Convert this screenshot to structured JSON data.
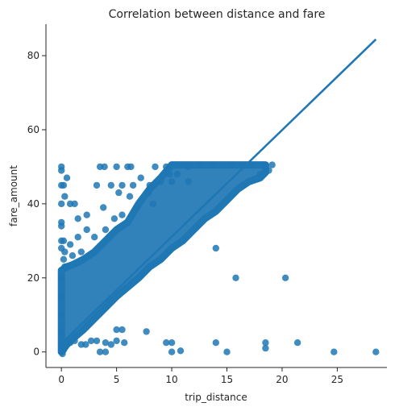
{
  "chart_data": {
    "type": "scatter",
    "title": "Correlation between distance and fare",
    "xlabel": "trip_distance",
    "ylabel": "fare_amount",
    "xlim": [
      -1.4,
      29.5
    ],
    "ylim": [
      -4.2,
      88.5
    ],
    "xticks": [
      0,
      5,
      10,
      15,
      20,
      25
    ],
    "yticks": [
      0,
      20,
      40,
      60,
      80
    ],
    "grid": false,
    "legend": "none",
    "point_color": "#1f77b4",
    "regression_line": {
      "x": [
        0.0,
        28.5
      ],
      "y": [
        2.3,
        84.4
      ],
      "color": "#1f77b4"
    },
    "dense_band": {
      "x": [
        0.0,
        0.5,
        1.0,
        2.0,
        3.0,
        4.0,
        5.0,
        6.0,
        7.0,
        8.0,
        9.0,
        10.0,
        11.0,
        12.0,
        13.0,
        14.0,
        15.0,
        16.0,
        17.0,
        18.0,
        18.5
      ],
      "upper": [
        22.0,
        23.0,
        23.5,
        25.0,
        27.0,
        30.0,
        33.0,
        35.0,
        40.0,
        44.0,
        47.0,
        50.5,
        50.5,
        50.5,
        50.5,
        50.5,
        50.5,
        50.5,
        50.5,
        50.5,
        50.5
      ],
      "lower": [
        0.0,
        2.0,
        3.5,
        6.0,
        9.0,
        12.0,
        15.0,
        17.5,
        20.0,
        23.0,
        25.0,
        28.0,
        30.0,
        33.0,
        36.0,
        38.0,
        41.0,
        44.0,
        46.0,
        47.0,
        48.5
      ]
    },
    "outliers": [
      {
        "x": 0,
        "y": 50
      },
      {
        "x": 0,
        "y": 49
      },
      {
        "x": 0,
        "y": 45
      },
      {
        "x": 0.2,
        "y": 45
      },
      {
        "x": 0.3,
        "y": 42
      },
      {
        "x": 0.5,
        "y": 47
      },
      {
        "x": 0,
        "y": 40
      },
      {
        "x": 0.8,
        "y": 40
      },
      {
        "x": 1.2,
        "y": 40
      },
      {
        "x": 0,
        "y": 35
      },
      {
        "x": 0,
        "y": 34
      },
      {
        "x": 1.5,
        "y": 36
      },
      {
        "x": 0,
        "y": 30
      },
      {
        "x": 0.2,
        "y": 30
      },
      {
        "x": 0,
        "y": 28
      },
      {
        "x": 0.3,
        "y": 27
      },
      {
        "x": 0.2,
        "y": 25
      },
      {
        "x": 0.3,
        "y": 23
      },
      {
        "x": 0,
        "y": 20
      },
      {
        "x": 0,
        "y": 15
      },
      {
        "x": 0,
        "y": 10
      },
      {
        "x": 0,
        "y": 5
      },
      {
        "x": 0,
        "y": 2
      },
      {
        "x": 0,
        "y": 0
      },
      {
        "x": 0.1,
        "y": -0.5
      },
      {
        "x": 0.2,
        "y": 0.5
      },
      {
        "x": 0.8,
        "y": 2.5
      },
      {
        "x": 1.2,
        "y": 3
      },
      {
        "x": 1.8,
        "y": 2
      },
      {
        "x": 2.2,
        "y": 2
      },
      {
        "x": 2.7,
        "y": 3
      },
      {
        "x": 3.2,
        "y": 3
      },
      {
        "x": 4.0,
        "y": 2.5
      },
      {
        "x": 4.5,
        "y": 2
      },
      {
        "x": 3.5,
        "y": 0
      },
      {
        "x": 4.0,
        "y": 0
      },
      {
        "x": 5.0,
        "y": 6
      },
      {
        "x": 5.5,
        "y": 6
      },
      {
        "x": 5.0,
        "y": 3
      },
      {
        "x": 5.7,
        "y": 2.5
      },
      {
        "x": 7.7,
        "y": 5.5
      },
      {
        "x": 9.5,
        "y": 2.5
      },
      {
        "x": 10.0,
        "y": 2.5
      },
      {
        "x": 10.0,
        "y": 0
      },
      {
        "x": 10.8,
        "y": 0.3
      },
      {
        "x": 14.0,
        "y": 2.5
      },
      {
        "x": 15.0,
        "y": 0
      },
      {
        "x": 18.5,
        "y": 2.5
      },
      {
        "x": 18.5,
        "y": 1
      },
      {
        "x": 21.4,
        "y": 2.5
      },
      {
        "x": 24.7,
        "y": 0
      },
      {
        "x": 28.5,
        "y": 0
      },
      {
        "x": 14.0,
        "y": 28
      },
      {
        "x": 15.8,
        "y": 20
      },
      {
        "x": 20.3,
        "y": 20
      },
      {
        "x": 3.5,
        "y": 50
      },
      {
        "x": 3.9,
        "y": 50
      },
      {
        "x": 5.0,
        "y": 50
      },
      {
        "x": 6.0,
        "y": 50
      },
      {
        "x": 6.3,
        "y": 50
      },
      {
        "x": 8.5,
        "y": 50
      },
      {
        "x": 9.8,
        "y": 48
      },
      {
        "x": 8.0,
        "y": 45
      },
      {
        "x": 5.5,
        "y": 45
      },
      {
        "x": 4.5,
        "y": 45
      },
      {
        "x": 3.2,
        "y": 45
      },
      {
        "x": 5.2,
        "y": 43
      },
      {
        "x": 6.2,
        "y": 42
      },
      {
        "x": 7.9,
        "y": 43
      },
      {
        "x": 8.3,
        "y": 40
      },
      {
        "x": 3.8,
        "y": 39
      },
      {
        "x": 2.3,
        "y": 37
      },
      {
        "x": 4.8,
        "y": 36
      },
      {
        "x": 2.3,
        "y": 33
      },
      {
        "x": 1.5,
        "y": 31
      },
      {
        "x": 0.8,
        "y": 29
      },
      {
        "x": 1.0,
        "y": 26
      },
      {
        "x": 1.8,
        "y": 27
      },
      {
        "x": 3.0,
        "y": 31
      },
      {
        "x": 4.0,
        "y": 33
      },
      {
        "x": 5.5,
        "y": 37
      },
      {
        "x": 6.8,
        "y": 39
      },
      {
        "x": 6.5,
        "y": 45
      },
      {
        "x": 7.2,
        "y": 47
      },
      {
        "x": 9.0,
        "y": 46
      },
      {
        "x": 9.5,
        "y": 50
      },
      {
        "x": 11.5,
        "y": 50
      },
      {
        "x": 12.5,
        "y": 50.5
      },
      {
        "x": 13.8,
        "y": 50.5
      },
      {
        "x": 15.5,
        "y": 50.5
      },
      {
        "x": 16.5,
        "y": 50.5
      },
      {
        "x": 17.3,
        "y": 50.5
      },
      {
        "x": 18.3,
        "y": 50.5
      },
      {
        "x": 19.1,
        "y": 50.5
      },
      {
        "x": 10.0,
        "y": 46
      },
      {
        "x": 10.5,
        "y": 48
      },
      {
        "x": 11.5,
        "y": 46
      },
      {
        "x": 18.8,
        "y": 49
      },
      {
        "x": 18.0,
        "y": 48
      }
    ]
  }
}
